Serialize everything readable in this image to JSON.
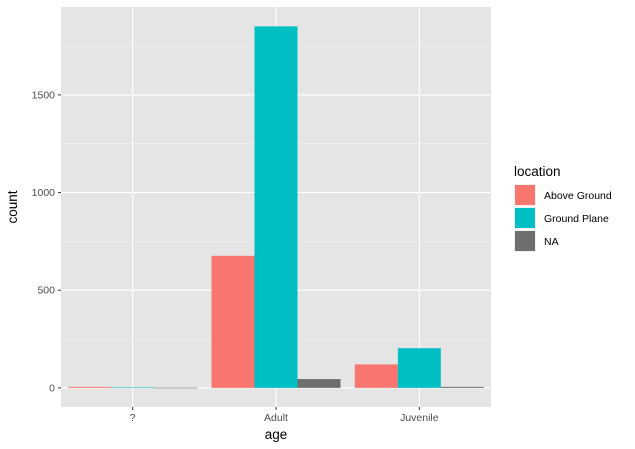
{
  "chart_data": {
    "type": "bar",
    "xlabel": "age",
    "ylabel": "count",
    "categories": [
      "?",
      "Adult",
      "Juvenile"
    ],
    "series": [
      {
        "name": "Above Ground",
        "color": "#F8766D",
        "values": [
          5,
          676,
          120
        ]
      },
      {
        "name": "Ground Plane",
        "color": "#00BFC4",
        "values": [
          2,
          1851,
          203
        ]
      },
      {
        "name": "NA",
        "color": "#6E6E6E",
        "values": [
          1,
          45,
          5
        ]
      }
    ],
    "ylim": [
      -98,
      1950
    ],
    "yticks": [
      0,
      500,
      1000,
      1500
    ],
    "ytick_labels": [
      "0",
      "500",
      "1000",
      "1500"
    ],
    "legend": {
      "title": "location",
      "placement": "right"
    },
    "panel_background": "#E5E5E5",
    "grid": true
  }
}
